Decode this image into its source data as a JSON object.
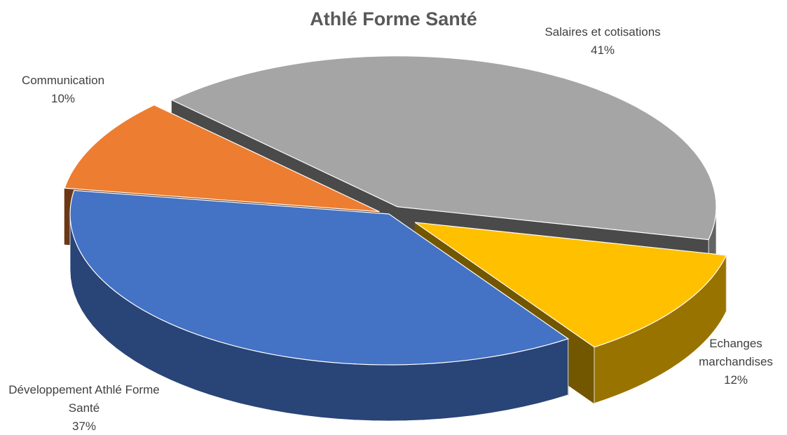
{
  "chart_data": {
    "type": "pie",
    "title": "Athlé Forme Santé",
    "categories": [
      "Salaires et cotisations",
      "Echanges marchandises",
      "Développement Athlé Forme Santé",
      "Communication"
    ],
    "values": [
      41,
      12,
      37,
      10
    ],
    "value_labels": [
      "41%",
      "12%",
      "37%",
      "10%"
    ],
    "colors": [
      "#a5a5a5",
      "#ffc000",
      "#4472c4",
      "#ed7d31"
    ]
  }
}
